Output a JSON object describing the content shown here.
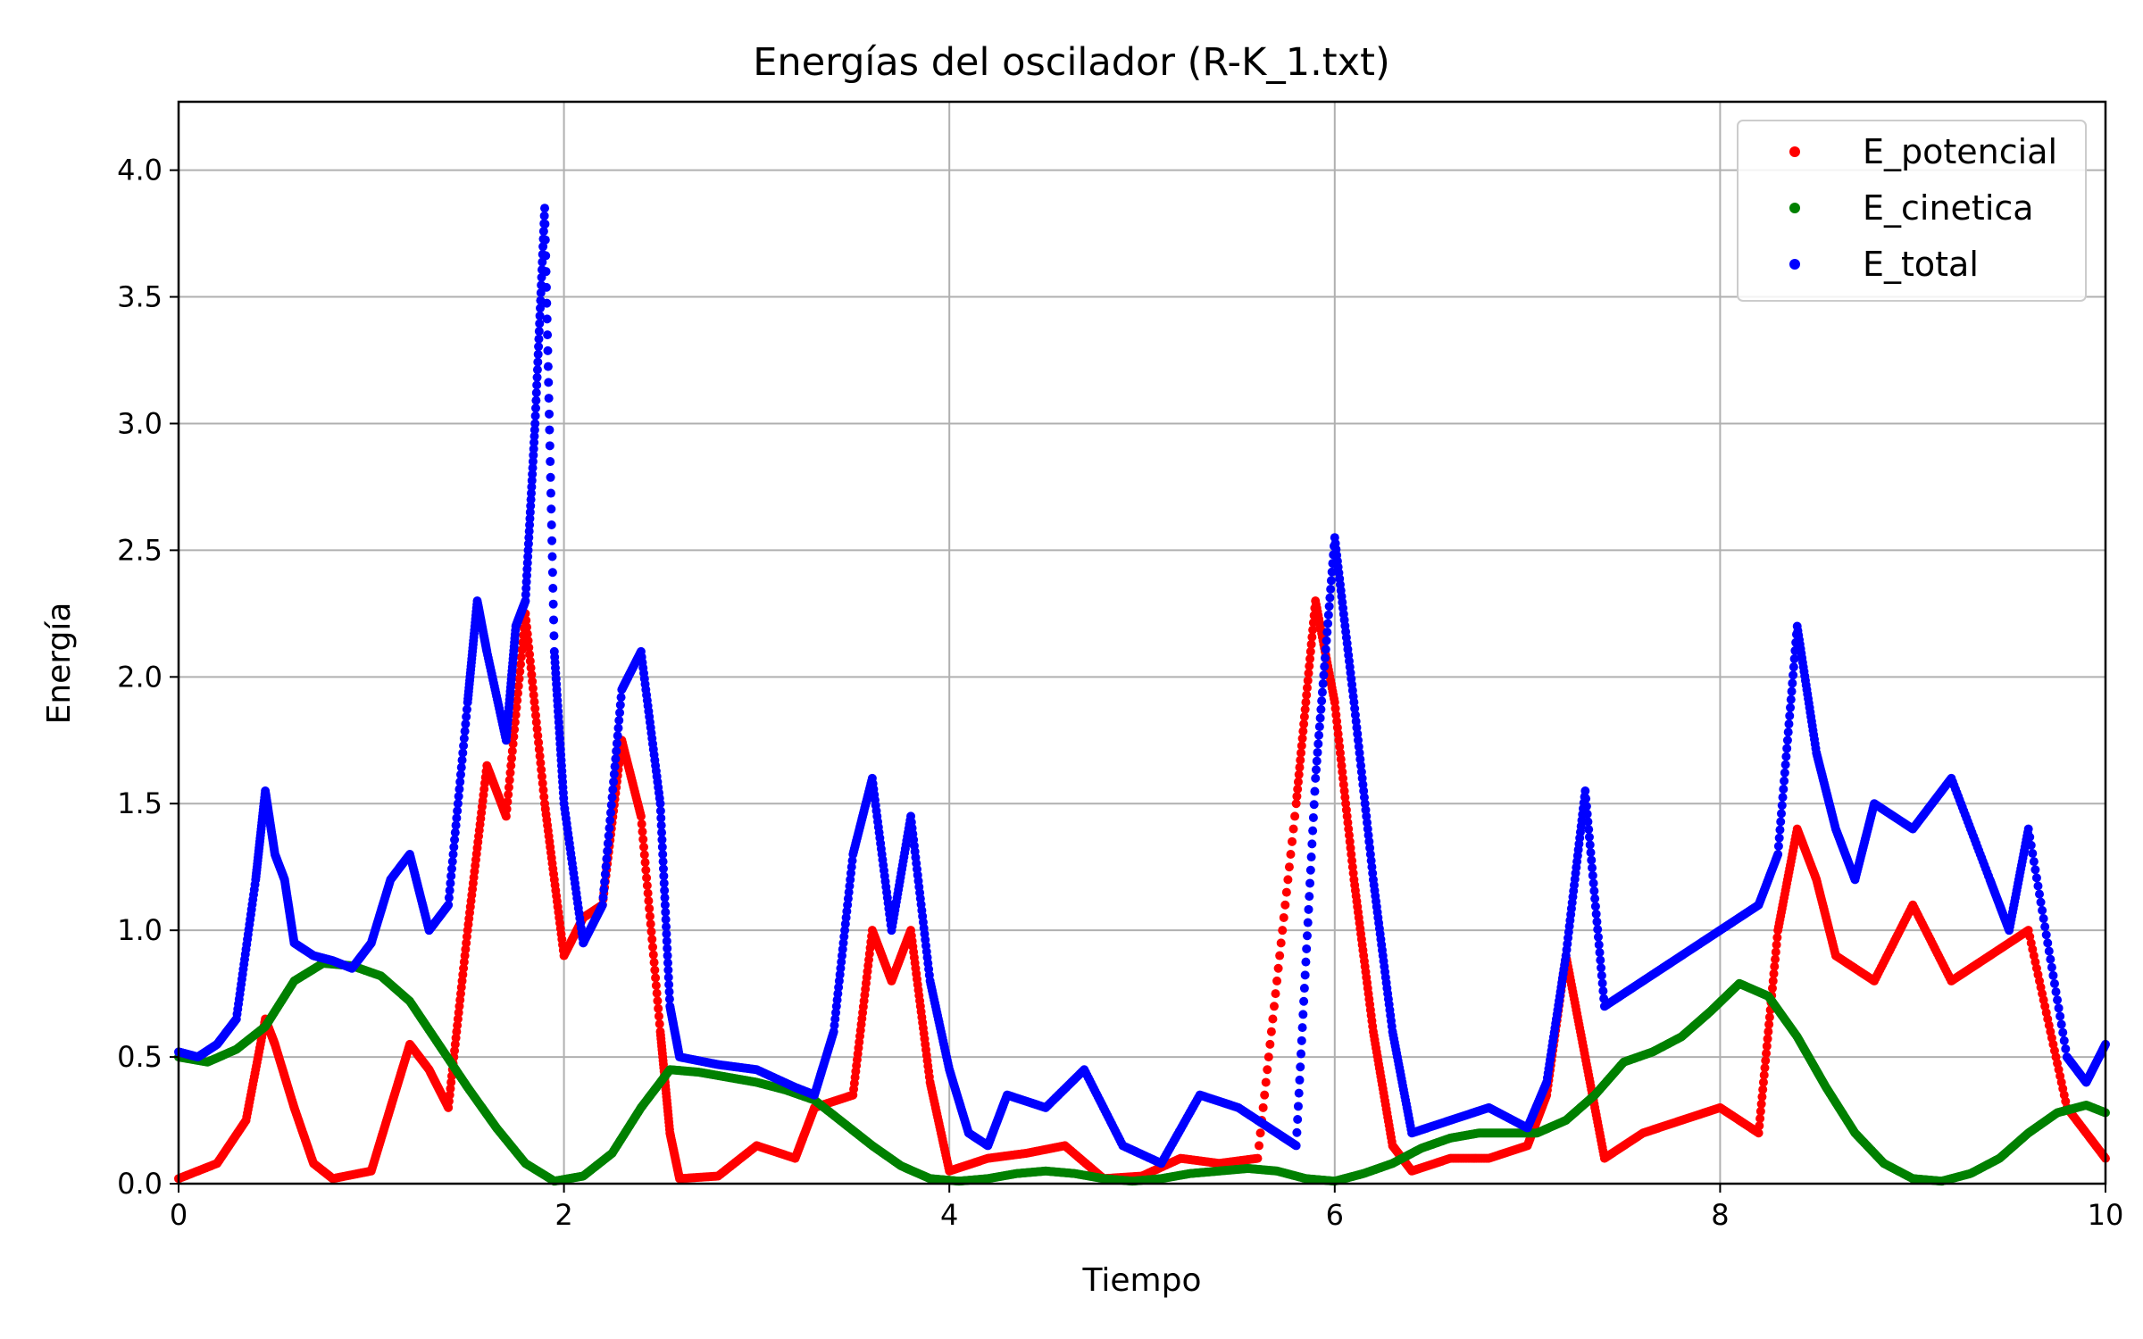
{
  "chart_data": {
    "type": "scatter",
    "title": "Energías del oscilador (R-K_1.txt)",
    "xlabel": "Tiempo",
    "ylabel": "Energía",
    "xlim": [
      0,
      10
    ],
    "ylim": [
      0,
      4.27
    ],
    "xticks": [
      0,
      2,
      4,
      6,
      8,
      10
    ],
    "xtick_labels": [
      "0",
      "2",
      "4",
      "6",
      "8",
      "10"
    ],
    "yticks": [
      0,
      0.5,
      1,
      1.5,
      2,
      2.5,
      3,
      3.5,
      4
    ],
    "ytick_labels": [
      "0.0",
      "0.5",
      "1.0",
      "1.5",
      "2.0",
      "2.5",
      "3.0",
      "3.5",
      "4.0"
    ],
    "grid": true,
    "legend_position": "top-right",
    "series": [
      {
        "name": "E_potencial",
        "color": "#ff0000",
        "x": [
          0,
          0.2,
          0.35,
          0.45,
          0.5,
          0.6,
          0.7,
          0.8,
          1.0,
          1.1,
          1.2,
          1.3,
          1.4,
          1.5,
          1.6,
          1.7,
          1.8,
          1.9,
          2.0,
          2.1,
          2.2,
          2.3,
          2.4,
          2.5,
          2.55,
          2.6,
          2.8,
          3.0,
          3.2,
          3.3,
          3.5,
          3.6,
          3.7,
          3.8,
          3.9,
          4.0,
          4.2,
          4.4,
          4.6,
          4.8,
          5.0,
          5.2,
          5.4,
          5.6,
          5.8,
          5.9,
          6.0,
          6.1,
          6.2,
          6.3,
          6.4,
          6.6,
          6.8,
          7.0,
          7.1,
          7.2,
          7.3,
          7.4,
          7.6,
          7.8,
          8.0,
          8.2,
          8.3,
          8.4,
          8.5,
          8.6,
          8.8,
          9.0,
          9.2,
          9.4,
          9.6,
          9.8,
          10.0
        ],
        "y": [
          0.02,
          0.08,
          0.25,
          0.65,
          0.55,
          0.3,
          0.08,
          0.02,
          0.05,
          0.3,
          0.55,
          0.45,
          0.3,
          1.0,
          1.65,
          1.45,
          2.25,
          1.5,
          0.9,
          1.05,
          1.1,
          1.75,
          1.45,
          0.6,
          0.2,
          0.02,
          0.03,
          0.15,
          0.1,
          0.3,
          0.35,
          1.0,
          0.8,
          1.0,
          0.4,
          0.05,
          0.1,
          0.12,
          0.15,
          0.02,
          0.03,
          0.1,
          0.08,
          0.1,
          1.5,
          2.3,
          1.9,
          1.2,
          0.6,
          0.15,
          0.05,
          0.1,
          0.1,
          0.15,
          0.35,
          0.9,
          0.5,
          0.1,
          0.2,
          0.25,
          0.3,
          0.2,
          1.0,
          1.4,
          1.2,
          0.9,
          0.8,
          1.1,
          0.8,
          0.9,
          1.0,
          0.3,
          0.1
        ]
      },
      {
        "name": "E_cinetica",
        "color": "#008000",
        "x": [
          0,
          0.15,
          0.3,
          0.45,
          0.6,
          0.75,
          0.9,
          1.05,
          1.2,
          1.35,
          1.5,
          1.65,
          1.8,
          1.95,
          2.1,
          2.25,
          2.4,
          2.55,
          2.7,
          2.85,
          3.0,
          3.15,
          3.3,
          3.45,
          3.6,
          3.75,
          3.9,
          4.05,
          4.2,
          4.35,
          4.5,
          4.65,
          4.8,
          4.95,
          5.1,
          5.25,
          5.4,
          5.55,
          5.7,
          5.85,
          6.0,
          6.15,
          6.3,
          6.45,
          6.6,
          6.75,
          6.9,
          7.05,
          7.2,
          7.35,
          7.5,
          7.65,
          7.8,
          7.95,
          8.1,
          8.25,
          8.4,
          8.55,
          8.7,
          8.85,
          9.0,
          9.15,
          9.3,
          9.45,
          9.6,
          9.75,
          9.9,
          10.0
        ],
        "y": [
          0.5,
          0.48,
          0.53,
          0.62,
          0.8,
          0.87,
          0.86,
          0.82,
          0.72,
          0.55,
          0.38,
          0.22,
          0.08,
          0.01,
          0.03,
          0.12,
          0.3,
          0.45,
          0.44,
          0.42,
          0.4,
          0.37,
          0.33,
          0.24,
          0.15,
          0.07,
          0.02,
          0.01,
          0.02,
          0.04,
          0.05,
          0.04,
          0.02,
          0.01,
          0.02,
          0.04,
          0.05,
          0.06,
          0.05,
          0.02,
          0.01,
          0.04,
          0.08,
          0.14,
          0.18,
          0.2,
          0.2,
          0.2,
          0.25,
          0.35,
          0.48,
          0.52,
          0.58,
          0.68,
          0.79,
          0.74,
          0.58,
          0.38,
          0.2,
          0.08,
          0.02,
          0.01,
          0.04,
          0.1,
          0.2,
          0.28,
          0.31,
          0.28
        ]
      },
      {
        "name": "E_total",
        "color": "#0000ff",
        "x": [
          0,
          0.1,
          0.2,
          0.3,
          0.4,
          0.45,
          0.5,
          0.55,
          0.6,
          0.7,
          0.8,
          0.9,
          1.0,
          1.1,
          1.2,
          1.3,
          1.4,
          1.5,
          1.55,
          1.6,
          1.7,
          1.75,
          1.8,
          1.85,
          1.9,
          1.95,
          2.0,
          2.1,
          2.2,
          2.3,
          2.4,
          2.5,
          2.55,
          2.6,
          2.8,
          3.0,
          3.2,
          3.3,
          3.4,
          3.5,
          3.6,
          3.7,
          3.8,
          3.9,
          4.0,
          4.1,
          4.2,
          4.3,
          4.5,
          4.7,
          4.9,
          5.1,
          5.3,
          5.5,
          5.7,
          5.8,
          5.9,
          6.0,
          6.1,
          6.2,
          6.3,
          6.4,
          6.6,
          6.8,
          7.0,
          7.1,
          7.2,
          7.3,
          7.4,
          7.6,
          7.8,
          8.0,
          8.2,
          8.3,
          8.4,
          8.5,
          8.6,
          8.7,
          8.8,
          9.0,
          9.2,
          9.4,
          9.5,
          9.6,
          9.8,
          9.9,
          10.0
        ],
        "y": [
          0.52,
          0.5,
          0.55,
          0.65,
          1.2,
          1.55,
          1.3,
          1.2,
          0.95,
          0.9,
          0.88,
          0.85,
          0.95,
          1.2,
          1.3,
          1.0,
          1.1,
          1.9,
          2.3,
          2.1,
          1.75,
          2.2,
          2.3,
          3.0,
          3.85,
          2.1,
          1.5,
          0.95,
          1.1,
          1.95,
          2.1,
          1.5,
          0.7,
          0.5,
          0.47,
          0.45,
          0.38,
          0.35,
          0.6,
          1.3,
          1.6,
          1.0,
          1.45,
          0.8,
          0.45,
          0.2,
          0.15,
          0.35,
          0.3,
          0.45,
          0.15,
          0.08,
          0.35,
          0.3,
          0.2,
          0.15,
          1.6,
          2.55,
          1.9,
          1.2,
          0.6,
          0.2,
          0.25,
          0.3,
          0.22,
          0.4,
          0.9,
          1.55,
          0.7,
          0.8,
          0.9,
          1.0,
          1.1,
          1.3,
          2.2,
          1.7,
          1.4,
          1.2,
          1.5,
          1.4,
          1.6,
          1.2,
          1.0,
          1.4,
          0.5,
          0.4,
          0.55
        ]
      }
    ]
  }
}
